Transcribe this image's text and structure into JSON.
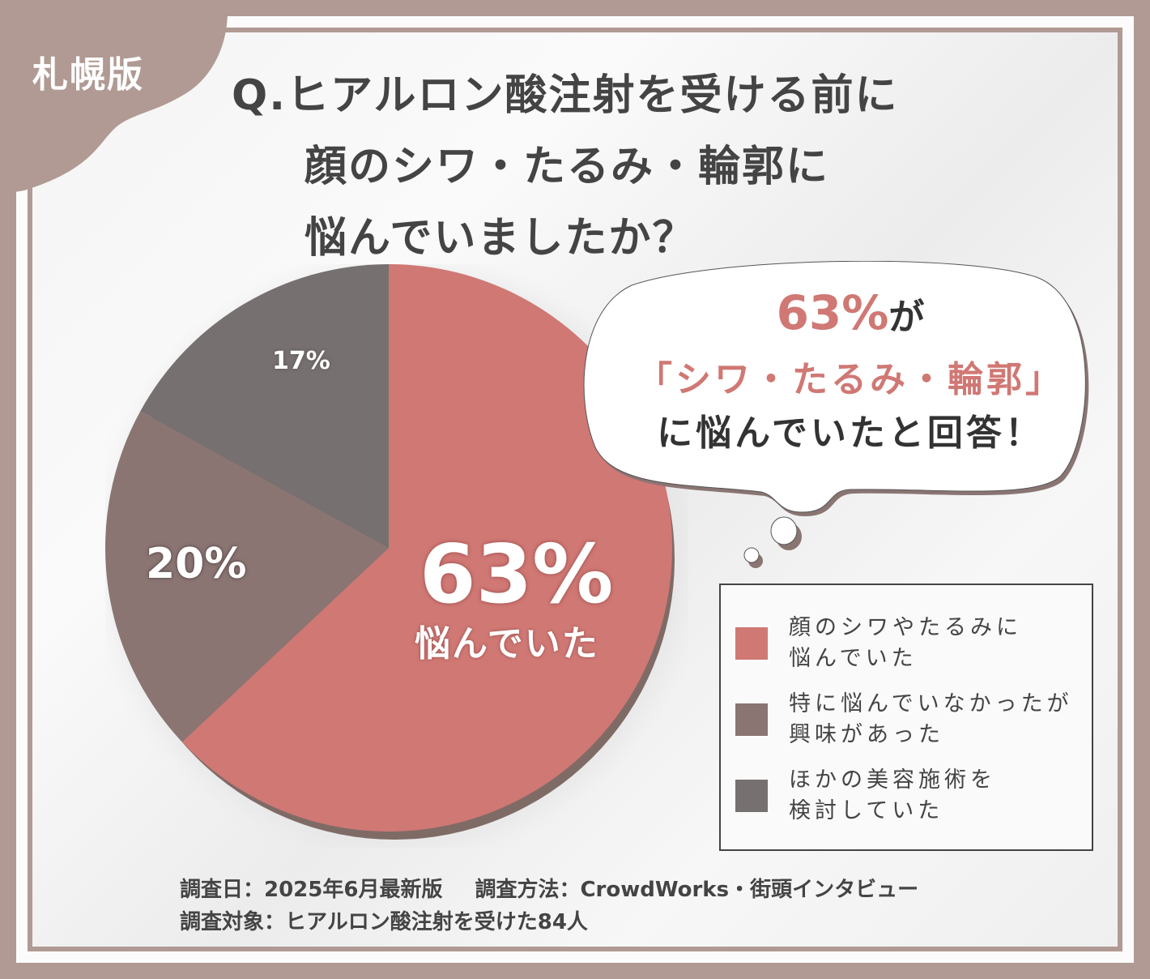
{
  "region_badge": "札幌版",
  "title": {
    "line1": "Q.ヒアルロン酸注射を受ける前に",
    "line2": "顔のシワ・たるみ・輪郭に",
    "line3": "悩んでいましたか？"
  },
  "callout": {
    "highlight": "63%",
    "highlight_suffix": "が",
    "line2": "「シワ・たるみ・輪郭」",
    "line3": "に悩んでいたと回答！"
  },
  "pie_labels": {
    "slice1_value": "63%",
    "slice1_caption": "悩んでいた",
    "slice2_value": "20%",
    "slice3_value": "17%"
  },
  "legend": {
    "items": [
      {
        "label": "顔のシワやたるみに\n悩んでいた",
        "color": "#d07874"
      },
      {
        "label": "特に悩んでいなかったが\n興味があった",
        "color": "#8a7573"
      },
      {
        "label": "ほかの美容施術を\n検討していた",
        "color": "#767070"
      }
    ]
  },
  "footer": {
    "date": "調査日：2025年6月最新版",
    "method": "調査方法：CrowdWorks・街頭インタビュー",
    "target": "調査対象：ヒアルロン酸注射を受けた84人"
  },
  "colors": {
    "frame": "#b09a93",
    "accent": "#d07874",
    "slice2": "#8a7573",
    "slice3": "#767070",
    "text": "#444444"
  },
  "chart_data": {
    "type": "pie",
    "title": "Q.ヒアルロン酸注射を受ける前に顔のシワ・たるみ・輪郭に悩んでいましたか？",
    "categories": [
      "顔のシワやたるみに悩んでいた",
      "特に悩んでいなかったが興味があった",
      "ほかの美容施術を検討していた"
    ],
    "values": [
      63,
      20,
      17
    ],
    "unit": "%",
    "colors": [
      "#d07874",
      "#8a7573",
      "#767070"
    ],
    "start_angle": "12 o'clock, clockwise",
    "legend_position": "right",
    "sample_size": 84
  }
}
